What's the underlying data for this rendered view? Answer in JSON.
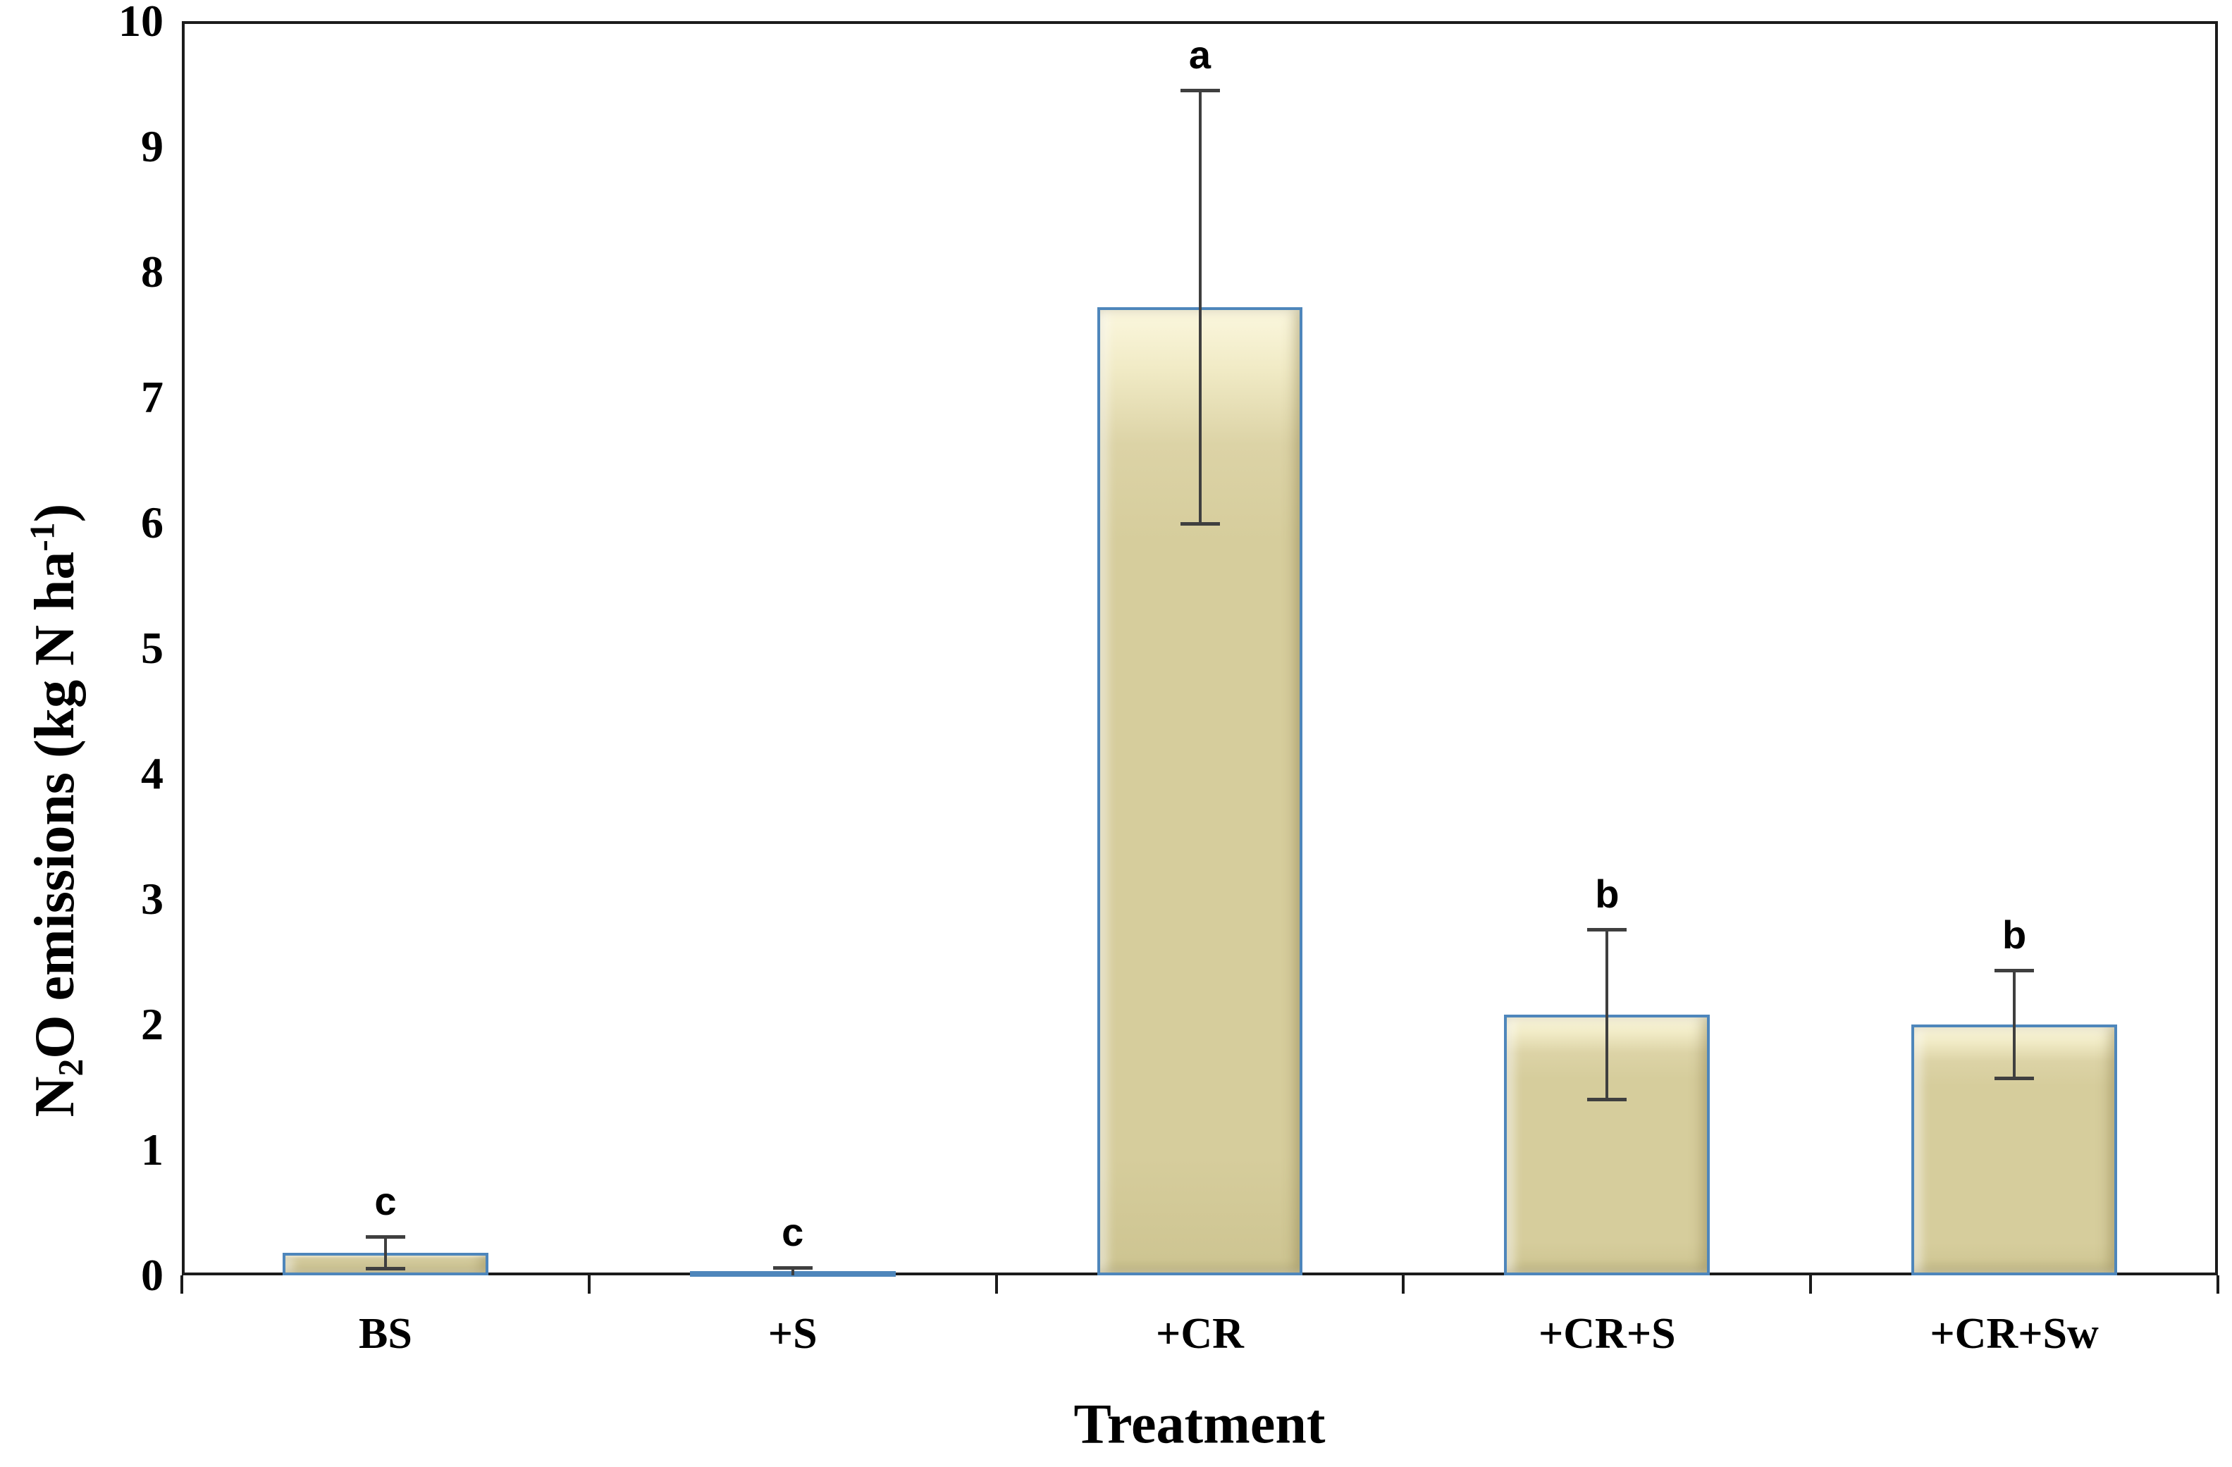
{
  "page": {
    "background": "#ffffff"
  },
  "chart_data": {
    "type": "bar",
    "title": "",
    "xlabel": "Treatment",
    "ylabel": "N2O emissions (kg N ha-1)",
    "ylabel_parts": {
      "prefix": "N",
      "subscript": "2",
      "middle": "O emissions (kg N ha",
      "superscript": "-1",
      "suffix": ")"
    },
    "categories": [
      "BS",
      "+S",
      "+CR",
      "+CR+S",
      "+CR+Sw"
    ],
    "values": [
      0.18,
      0.02,
      7.72,
      2.08,
      2.0
    ],
    "error_bars": [
      0.13,
      0.04,
      1.73,
      0.68,
      0.43
    ],
    "sig_letters": [
      "c",
      "c",
      "a",
      "b",
      "b"
    ],
    "ylim": [
      0,
      10
    ],
    "y_tick_step": 1,
    "y_tick_labels": [
      "0",
      "1",
      "2",
      "3",
      "4",
      "5",
      "6",
      "7",
      "8",
      "9",
      "10"
    ],
    "grid": false,
    "legend": null,
    "colors": {
      "bar_fill": "#d6cd9c",
      "bar_highlight": "#f7f2d2",
      "bar_border": "#4e86bb",
      "error_bar": "#3f3f3f",
      "axis_frame": "#1b1b1b",
      "text": "#000000"
    }
  }
}
